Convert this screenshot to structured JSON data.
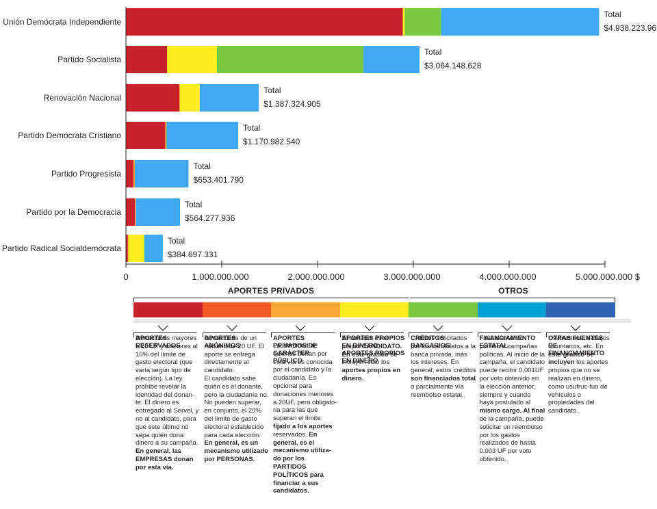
{
  "chart_data": {
    "type": "bar",
    "orientation": "horizontal",
    "stacked": true,
    "categories": [
      "Unión Demócrata Independiente",
      "Partido Socialista",
      "Renovación Nacional",
      "Partido Demócrata Cristiano",
      "Partido Progresista",
      "Partido por la Democracia",
      "Partido Radical Socialdemócrata"
    ],
    "series": [
      {
        "name": "APORTES RESERVADOS",
        "color": "#c8232c",
        "values": [
          2890000000,
          430000000,
          560000000,
          410000000,
          80000000,
          95000000,
          20000000
        ]
      },
      {
        "name": "APORTES ANÓNIMOS",
        "color": "#f15a24",
        "values": [
          0,
          0,
          0,
          0,
          0,
          0,
          0
        ]
      },
      {
        "name": "APORTES PRIVADOS DE CARÁCTER PÚBLICO",
        "color": "#faa632",
        "values": [
          0,
          0,
          0,
          15000000,
          12000000,
          10000000,
          8000000
        ]
      },
      {
        "name": "APORTES PROPIOS EN DINERO",
        "color": "#fcee21",
        "values": [
          20000000,
          520000000,
          210000000,
          0,
          0,
          0,
          165000000
        ]
      },
      {
        "name": "CRÉDITOS BANCARIOS",
        "color": "#7ac943",
        "values": [
          380000000,
          1530000000,
          0,
          0,
          0,
          0,
          0
        ]
      },
      {
        "name": "FINANCIAMIENTO ESTATAL",
        "color": "#3fa9f5",
        "values": [
          1648223969,
          584148628,
          617324905,
          745982540,
          561401790,
          459277936,
          191697331
        ]
      },
      {
        "name": "OTRAS FUENTES DE FINANCIAMIENTO",
        "color": "#3063b0",
        "values": [
          0,
          0,
          0,
          0,
          0,
          0,
          0
        ]
      }
    ],
    "totals_label": "Total",
    "totals": [
      "$4.938.223.969",
      "$3.064.148.628",
      "$1.387.324.905",
      "$1.170.982.540",
      "$653.401.790",
      "$564.277.936",
      "$384.697.331"
    ],
    "x_ticks": [
      0,
      1000000000,
      2000000000,
      3000000000,
      4000000000,
      5000000000
    ],
    "x_tick_labels": [
      "0",
      "1.000.000.000",
      "2.000.000.000",
      "3.000.000.000",
      "4.000.000.000",
      "5.000.000.000 $"
    ],
    "xlim": [
      0,
      5000000000
    ],
    "title": "",
    "xlabel": "",
    "ylabel": "",
    "grid": false
  },
  "legend": {
    "groups": {
      "private": "APORTES PRIVADOS",
      "others": "OTROS"
    },
    "items": [
      {
        "color": "#c8232c",
        "title": "APORTES RESERVADOS",
        "body": [
          [
            "Donaciones mayores a 20 UF y menores al 10% del límite de gasto electoral (que varía según tipo de elección). La ley prohíbe revelar la identidad del donan-te. El dinero es entregado al Servel, y no al candidato, para que este último no sepa quién dona dinero a su campaña. ",
            false
          ],
          [
            "En general, las EMPRESAS donan por esta vía.",
            true
          ]
        ]
      },
      {
        "color": "#f15a24",
        "title": "APORTES ANÓNIMOS",
        "body": [
          [
            "Donaciones de un máximo de 20 UF. El aporte se entrega directamente al candidato.\nEl candidato sabe quién es el donante, pero la ciudadanía no.  No pueden superar, en conjunto, el 20% del límite de gasto electoral establecido para cada elección. ",
            false
          ],
          [
            "En general, es un mecanismo utilizado por PERSONAS.",
            true
          ]
        ]
      },
      {
        "color": "#faa632",
        "title": "APORTES PRIVADOS DE CARÁCTER PÚBLICO",
        "body": [
          [
            "La identidad de quienes donan por esta vía es conocida por el candidato y la ciudadanía. Es opcional para donaciones menores a 20UF, pero obligato-ria para las que superan el límite ",
            false
          ],
          [
            "fijado a los aportes",
            true
          ],
          [
            " reservados. ",
            false
          ],
          [
            "En general, es el mecanismo utiliza-do por los PARTIDOS POLÍTICOS para financiar a sus candidatos.",
            true
          ]
        ]
      },
      {
        "color": "#fcee21",
        "title": "APORTES PROPIOS EN DINERO APORTES PROPIOS EN DINERO",
        "body": [
          [
            "El donante es el propio ",
            false
          ],
          [
            "CANDIDATO.",
            true
          ],
          [
            "\n",
            false
          ],
          [
            "En este gráfico se",
            true
          ],
          [
            " incluyen sólo los ",
            false
          ],
          [
            "aportes propios en dinero.",
            true
          ]
        ]
      },
      {
        "color": "#7ac943",
        "title": "CRÉDITOS BANCARIOS",
        "body": [
          [
            "Créditos solicitados por los candidatos a la banca privada, más los intereses. En general, estos créditos ",
            false
          ],
          [
            "son financiados total",
            true
          ],
          [
            " o parcialmente vía reembolso estatal.",
            false
          ]
        ]
      },
      {
        "color": "#00a0d2",
        "title": "FINANCIAMIENTO ESTATAL",
        "body": [
          [
            "Financiamiento público a campañas políticas. Al inicio de la campaña, el candidato puede recibir 0,001UF por voto obtenido en la elección anterior, siempre y cuando haya postulado al ",
            false
          ],
          [
            "mismo cargo. Al final",
            true
          ],
          [
            " de la campaña, puede solicitar un reembolso por los gastos realizados de hasta 0,003 UF por voto obtenido.",
            false
          ]
        ]
      },
      {
        "color": "#3063b0",
        "title": "OTRAS FUENTES DE FINANCIAMIENTO",
        "body": [
          [
            "Usufructuos, trabajos voluntarios, etc. En ",
            false
          ],
          [
            "este gráfico se incluyen",
            true
          ],
          [
            " los aportes propios que no se realizan en dinero, como usufruc-tuo de vehículos o propiedades del candidato.",
            false
          ]
        ]
      }
    ]
  }
}
